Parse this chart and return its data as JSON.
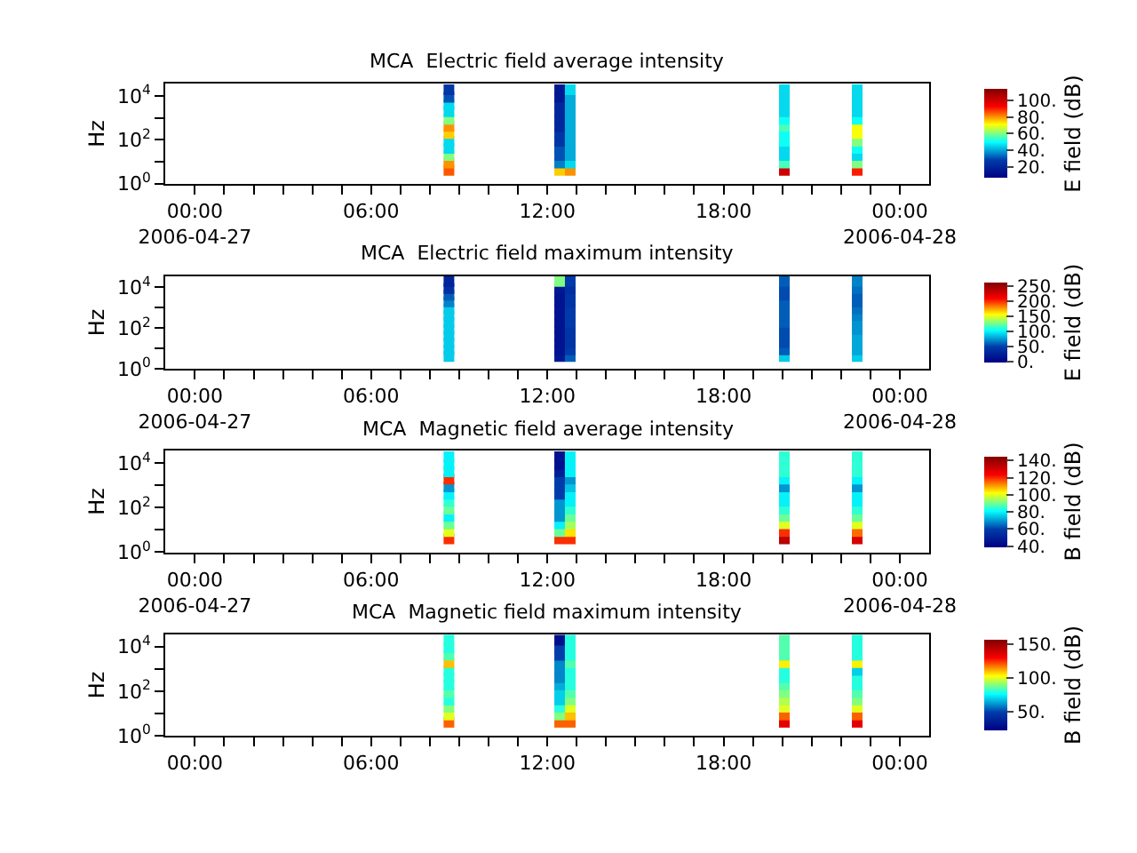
{
  "chart_data": [
    {
      "type": "scatter",
      "title": "MCA  Electric field average intensity",
      "ylabel": "Hz",
      "clabel": "E field (dB)",
      "marker": "square",
      "log": "y",
      "xlim": [
        -1,
        25
      ],
      "xticks": [
        {
          "value": 0,
          "label": "00:00\n2006-04-27"
        },
        {
          "value": 1,
          "label": null
        },
        {
          "value": 2,
          "label": null
        },
        {
          "value": 3,
          "label": null
        },
        {
          "value": 4,
          "label": null
        },
        {
          "value": 5,
          "label": null
        },
        {
          "value": 6,
          "label": "06:00"
        },
        {
          "value": 7,
          "label": null
        },
        {
          "value": 8,
          "label": null
        },
        {
          "value": 9,
          "label": null
        },
        {
          "value": 10,
          "label": null
        },
        {
          "value": 11,
          "label": null
        },
        {
          "value": 12,
          "label": "12:00"
        },
        {
          "value": 13,
          "label": null
        },
        {
          "value": 14,
          "label": null
        },
        {
          "value": 15,
          "label": null
        },
        {
          "value": 16,
          "label": null
        },
        {
          "value": 17,
          "label": null
        },
        {
          "value": 18,
          "label": "18:00"
        },
        {
          "value": 19,
          "label": null
        },
        {
          "value": 20,
          "label": null
        },
        {
          "value": 21,
          "label": null
        },
        {
          "value": 22,
          "label": null
        },
        {
          "value": 23,
          "label": null
        },
        {
          "value": 24,
          "label": "00:00\n2006-04-28"
        }
      ],
      "ylim": [
        1,
        35000
      ],
      "yticks": [
        {
          "value": 1,
          "label": "10$^{0}$"
        },
        {
          "value": 10,
          "label": null
        },
        {
          "value": 100,
          "label": "10$^{2}$"
        },
        {
          "value": 1000,
          "label": null
        },
        {
          "value": 10000,
          "label": "10$^{4}$"
        }
      ],
      "clim": [
        6,
        114
      ],
      "cticks": [
        {
          "value": 20,
          "label": "20."
        },
        {
          "value": 40,
          "label": "40."
        },
        {
          "value": 60,
          "label": "60."
        },
        {
          "value": 80,
          "label": "80."
        },
        {
          "value": 100,
          "label": "100."
        }
      ],
      "series": [
        {
          "x": [
            8.65,
            8.65,
            8.65,
            8.65,
            8.65,
            8.65,
            8.65,
            8.65,
            8.65,
            8.65,
            8.65,
            8.65,
            12.42,
            12.42,
            12.42,
            12.42,
            12.42,
            12.42,
            12.42,
            12.42,
            12.42,
            12.42,
            12.42,
            12.42,
            12.78,
            12.78,
            12.78,
            12.78,
            12.78,
            12.78,
            12.78,
            12.78,
            12.78,
            12.78,
            12.78,
            12.78,
            20.07,
            20.07,
            20.07,
            20.07,
            20.07,
            20.07,
            20.07,
            20.07,
            20.07,
            20.07,
            20.07,
            20.07,
            22.55,
            22.55,
            22.55,
            22.55,
            22.55,
            22.55,
            22.55,
            22.55,
            22.55,
            22.55,
            22.55,
            22.55
          ],
          "values": [
            4,
            8.5,
            19,
            40,
            85,
            190,
            400,
            850,
            1900,
            4000,
            8500,
            19000,
            4,
            8.5,
            19,
            40,
            85,
            190,
            400,
            850,
            1900,
            4000,
            8500,
            19000,
            4,
            8.5,
            19,
            40,
            85,
            190,
            400,
            850,
            1900,
            4000,
            8500,
            19000,
            4,
            8.5,
            19,
            40,
            85,
            190,
            400,
            850,
            1900,
            4000,
            8500,
            19000,
            4,
            8.5,
            19,
            40,
            85,
            190,
            400,
            850,
            1900,
            4000,
            8500,
            19000
          ],
          "cvalues": [
            85,
            80,
            60,
            45,
            45,
            75,
            80,
            60,
            45,
            45,
            30,
            25,
            75,
            35,
            30,
            30,
            25,
            25,
            20,
            20,
            20,
            20,
            15,
            15,
            80,
            45,
            40,
            40,
            40,
            40,
            40,
            40,
            40,
            40,
            40,
            45,
            100,
            55,
            45,
            45,
            50,
            50,
            55,
            50,
            45,
            45,
            45,
            45,
            90,
            60,
            45,
            50,
            60,
            70,
            70,
            50,
            45,
            45,
            45,
            45
          ]
        }
      ]
    },
    {
      "type": "scatter",
      "title": "MCA  Electric field maximum intensity",
      "ylabel": "Hz",
      "clabel": "E field (dB)",
      "marker": "square",
      "log": "y",
      "xlim": [
        -1,
        25
      ],
      "xticks": [
        {
          "value": 0,
          "label": "00:00\n2006-04-27"
        },
        {
          "value": 1,
          "label": null
        },
        {
          "value": 2,
          "label": null
        },
        {
          "value": 3,
          "label": null
        },
        {
          "value": 4,
          "label": null
        },
        {
          "value": 5,
          "label": null
        },
        {
          "value": 6,
          "label": "06:00"
        },
        {
          "value": 7,
          "label": null
        },
        {
          "value": 8,
          "label": null
        },
        {
          "value": 9,
          "label": null
        },
        {
          "value": 10,
          "label": null
        },
        {
          "value": 11,
          "label": null
        },
        {
          "value": 12,
          "label": "12:00"
        },
        {
          "value": 13,
          "label": null
        },
        {
          "value": 14,
          "label": null
        },
        {
          "value": 15,
          "label": null
        },
        {
          "value": 16,
          "label": null
        },
        {
          "value": 17,
          "label": null
        },
        {
          "value": 18,
          "label": "18:00"
        },
        {
          "value": 19,
          "label": null
        },
        {
          "value": 20,
          "label": null
        },
        {
          "value": 21,
          "label": null
        },
        {
          "value": 22,
          "label": null
        },
        {
          "value": 23,
          "label": null
        },
        {
          "value": 24,
          "label": "00:00\n2006-04-28"
        }
      ],
      "ylim": [
        1,
        35000
      ],
      "yticks": [
        {
          "value": 1,
          "label": "10$^{0}$"
        },
        {
          "value": 10,
          "label": null
        },
        {
          "value": 100,
          "label": "10$^{2}$"
        },
        {
          "value": 1000,
          "label": null
        },
        {
          "value": 10000,
          "label": "10$^{4}$"
        }
      ],
      "clim": [
        -2,
        263
      ],
      "cticks": [
        {
          "value": 0,
          "label": "0."
        },
        {
          "value": 50,
          "label": "50."
        },
        {
          "value": 100,
          "label": "100."
        },
        {
          "value": 150,
          "label": "150."
        },
        {
          "value": 200,
          "label": "200."
        },
        {
          "value": 250,
          "label": "250."
        }
      ],
      "series": [
        {
          "x": [
            8.65,
            8.65,
            8.65,
            8.65,
            8.65,
            8.65,
            8.65,
            8.65,
            8.65,
            8.65,
            8.65,
            8.65,
            12.42,
            12.42,
            12.42,
            12.42,
            12.42,
            12.42,
            12.42,
            12.42,
            12.42,
            12.42,
            12.42,
            12.42,
            12.78,
            12.78,
            12.78,
            12.78,
            12.78,
            12.78,
            12.78,
            12.78,
            12.78,
            12.78,
            12.78,
            12.78,
            20.07,
            20.07,
            20.07,
            20.07,
            20.07,
            20.07,
            20.07,
            20.07,
            20.07,
            20.07,
            20.07,
            20.07,
            22.55,
            22.55,
            22.55,
            22.55,
            22.55,
            22.55,
            22.55,
            22.55,
            22.55,
            22.55,
            22.55,
            22.55
          ],
          "values": [
            4,
            8.5,
            19,
            40,
            85,
            190,
            400,
            850,
            1900,
            4000,
            8500,
            19000,
            4,
            8.5,
            19,
            40,
            85,
            190,
            400,
            850,
            1900,
            4000,
            8500,
            19000,
            4,
            8.5,
            19,
            40,
            85,
            190,
            400,
            850,
            1900,
            4000,
            8500,
            19000,
            4,
            8.5,
            19,
            40,
            85,
            190,
            400,
            850,
            1900,
            4000,
            8500,
            19000,
            4,
            8.5,
            19,
            40,
            85,
            190,
            400,
            850,
            1900,
            4000,
            8500,
            19000
          ],
          "cvalues": [
            90,
            90,
            90,
            90,
            90,
            90,
            90,
            90,
            70,
            60,
            40,
            30,
            20,
            15,
            15,
            15,
            15,
            15,
            15,
            15,
            15,
            15,
            20,
            130,
            60,
            50,
            45,
            45,
            45,
            50,
            50,
            50,
            45,
            45,
            40,
            50,
            90,
            60,
            55,
            55,
            55,
            60,
            60,
            60,
            60,
            55,
            55,
            60,
            90,
            80,
            80,
            80,
            75,
            75,
            70,
            65,
            60,
            60,
            65,
            70
          ]
        }
      ]
    },
    {
      "type": "scatter",
      "title": "MCA  Magnetic field average intensity",
      "ylabel": "Hz",
      "clabel": "B field (dB)",
      "marker": "square",
      "log": "y",
      "xlim": [
        -1,
        25
      ],
      "xticks": [
        {
          "value": 0,
          "label": "00:00\n2006-04-27"
        },
        {
          "value": 1,
          "label": null
        },
        {
          "value": 2,
          "label": null
        },
        {
          "value": 3,
          "label": null
        },
        {
          "value": 4,
          "label": null
        },
        {
          "value": 5,
          "label": null
        },
        {
          "value": 6,
          "label": "06:00"
        },
        {
          "value": 7,
          "label": null
        },
        {
          "value": 8,
          "label": null
        },
        {
          "value": 9,
          "label": null
        },
        {
          "value": 10,
          "label": null
        },
        {
          "value": 11,
          "label": null
        },
        {
          "value": 12,
          "label": "12:00"
        },
        {
          "value": 13,
          "label": null
        },
        {
          "value": 14,
          "label": null
        },
        {
          "value": 15,
          "label": null
        },
        {
          "value": 16,
          "label": null
        },
        {
          "value": 17,
          "label": null
        },
        {
          "value": 18,
          "label": "18:00"
        },
        {
          "value": 19,
          "label": null
        },
        {
          "value": 20,
          "label": null
        },
        {
          "value": 21,
          "label": null
        },
        {
          "value": 22,
          "label": null
        },
        {
          "value": 23,
          "label": null
        },
        {
          "value": 24,
          "label": "00:00\n2006-04-28"
        }
      ],
      "ylim": [
        1,
        35000
      ],
      "yticks": [
        {
          "value": 1,
          "label": "10$^{0}$"
        },
        {
          "value": 10,
          "label": null
        },
        {
          "value": 100,
          "label": "10$^{2}$"
        },
        {
          "value": 1000,
          "label": null
        },
        {
          "value": 10000,
          "label": "10$^{4}$"
        }
      ],
      "clim": [
        39,
        145
      ],
      "cticks": [
        {
          "value": 40,
          "label": "40."
        },
        {
          "value": 60,
          "label": "60."
        },
        {
          "value": 80,
          "label": "80."
        },
        {
          "value": 100,
          "label": "100."
        },
        {
          "value": 120,
          "label": "120."
        },
        {
          "value": 140,
          "label": "140."
        }
      ],
      "series": [
        {
          "x": [
            8.65,
            8.65,
            8.65,
            8.65,
            8.65,
            8.65,
            8.65,
            8.65,
            8.65,
            8.65,
            8.65,
            8.65,
            12.42,
            12.42,
            12.42,
            12.42,
            12.42,
            12.42,
            12.42,
            12.42,
            12.42,
            12.42,
            12.42,
            12.42,
            12.78,
            12.78,
            12.78,
            12.78,
            12.78,
            12.78,
            12.78,
            12.78,
            12.78,
            12.78,
            12.78,
            12.78,
            20.07,
            20.07,
            20.07,
            20.07,
            20.07,
            20.07,
            20.07,
            20.07,
            20.07,
            20.07,
            20.07,
            20.07,
            22.55,
            22.55,
            22.55,
            22.55,
            22.55,
            22.55,
            22.55,
            22.55,
            22.55,
            22.55,
            22.55,
            22.55
          ],
          "values": [
            4,
            8.5,
            19,
            40,
            85,
            190,
            400,
            850,
            1900,
            4000,
            8500,
            19000,
            4,
            8.5,
            19,
            40,
            85,
            190,
            400,
            850,
            1900,
            4000,
            8500,
            19000,
            4,
            8.5,
            19,
            40,
            85,
            190,
            400,
            850,
            1900,
            4000,
            8500,
            19000,
            4,
            8.5,
            19,
            40,
            85,
            190,
            400,
            850,
            1900,
            4000,
            8500,
            19000,
            4,
            8.5,
            19,
            40,
            85,
            190,
            400,
            850,
            1900,
            4000,
            8500,
            19000
          ],
          "cvalues": [
            120,
            100,
            90,
            80,
            90,
            85,
            80,
            70,
            120,
            80,
            80,
            80,
            120,
            90,
            80,
            70,
            70,
            70,
            60,
            60,
            60,
            50,
            45,
            45,
            120,
            105,
            95,
            90,
            85,
            80,
            80,
            75,
            70,
            80,
            80,
            80,
            135,
            120,
            100,
            90,
            85,
            80,
            80,
            70,
            80,
            85,
            85,
            85,
            130,
            115,
            100,
            90,
            85,
            80,
            80,
            70,
            80,
            85,
            85,
            85
          ]
        }
      ]
    },
    {
      "type": "scatter",
      "title": "MCA  Magnetic field maximum intensity",
      "ylabel": "Hz",
      "clabel": "B field (dB)",
      "marker": "square",
      "log": "y",
      "xlim": [
        -1,
        25
      ],
      "xticks": [
        {
          "value": 0,
          "label": "00:00"
        },
        {
          "value": 1,
          "label": null
        },
        {
          "value": 2,
          "label": null
        },
        {
          "value": 3,
          "label": null
        },
        {
          "value": 4,
          "label": null
        },
        {
          "value": 5,
          "label": null
        },
        {
          "value": 6,
          "label": "06:00"
        },
        {
          "value": 7,
          "label": null
        },
        {
          "value": 8,
          "label": null
        },
        {
          "value": 9,
          "label": null
        },
        {
          "value": 10,
          "label": null
        },
        {
          "value": 11,
          "label": null
        },
        {
          "value": 12,
          "label": "12:00"
        },
        {
          "value": 13,
          "label": null
        },
        {
          "value": 14,
          "label": null
        },
        {
          "value": 15,
          "label": null
        },
        {
          "value": 16,
          "label": null
        },
        {
          "value": 17,
          "label": null
        },
        {
          "value": 18,
          "label": "18:00"
        },
        {
          "value": 19,
          "label": null
        },
        {
          "value": 20,
          "label": null
        },
        {
          "value": 21,
          "label": null
        },
        {
          "value": 22,
          "label": null
        },
        {
          "value": 23,
          "label": null
        },
        {
          "value": 24,
          "label": "00:00"
        }
      ],
      "ylim": [
        1,
        35000
      ],
      "yticks": [
        {
          "value": 1,
          "label": "10$^{0}$"
        },
        {
          "value": 10,
          "label": null
        },
        {
          "value": 100,
          "label": "10$^{2}$"
        },
        {
          "value": 1000,
          "label": null
        },
        {
          "value": 10000,
          "label": "10$^{4}$"
        }
      ],
      "clim": [
        23,
        157
      ],
      "cticks": [
        {
          "value": 50,
          "label": "50."
        },
        {
          "value": 100,
          "label": "100."
        },
        {
          "value": 150,
          "label": "150."
        }
      ],
      "series": [
        {
          "x": [
            8.65,
            8.65,
            8.65,
            8.65,
            8.65,
            8.65,
            8.65,
            8.65,
            8.65,
            8.65,
            8.65,
            8.65,
            12.42,
            12.42,
            12.42,
            12.42,
            12.42,
            12.42,
            12.42,
            12.42,
            12.42,
            12.42,
            12.42,
            12.42,
            12.78,
            12.78,
            12.78,
            12.78,
            12.78,
            12.78,
            12.78,
            12.78,
            12.78,
            12.78,
            12.78,
            12.78,
            20.07,
            20.07,
            20.07,
            20.07,
            20.07,
            20.07,
            20.07,
            20.07,
            20.07,
            20.07,
            20.07,
            20.07,
            22.55,
            22.55,
            22.55,
            22.55,
            22.55,
            22.55,
            22.55,
            22.55,
            22.55,
            22.55,
            22.55,
            22.55
          ],
          "values": [
            4,
            8.5,
            19,
            40,
            85,
            190,
            400,
            850,
            1900,
            4000,
            8500,
            19000,
            4,
            8.5,
            19,
            40,
            85,
            190,
            400,
            850,
            1900,
            4000,
            8500,
            19000,
            4,
            8.5,
            19,
            40,
            85,
            190,
            400,
            850,
            1900,
            4000,
            8500,
            19000,
            4,
            8.5,
            19,
            40,
            85,
            190,
            400,
            850,
            1900,
            4000,
            8500,
            19000,
            4,
            8.5,
            19,
            40,
            85,
            190,
            400,
            850,
            1900,
            4000,
            8500,
            19000
          ],
          "cvalues": [
            120,
            100,
            90,
            80,
            85,
            80,
            80,
            80,
            110,
            85,
            80,
            80,
            120,
            90,
            80,
            70,
            70,
            65,
            60,
            60,
            60,
            50,
            50,
            30,
            120,
            110,
            100,
            90,
            85,
            80,
            80,
            80,
            85,
            80,
            80,
            80,
            135,
            120,
            100,
            95,
            90,
            85,
            80,
            80,
            105,
            85,
            85,
            85,
            135,
            120,
            100,
            90,
            85,
            80,
            80,
            70,
            105,
            80,
            80,
            80
          ]
        }
      ]
    }
  ]
}
